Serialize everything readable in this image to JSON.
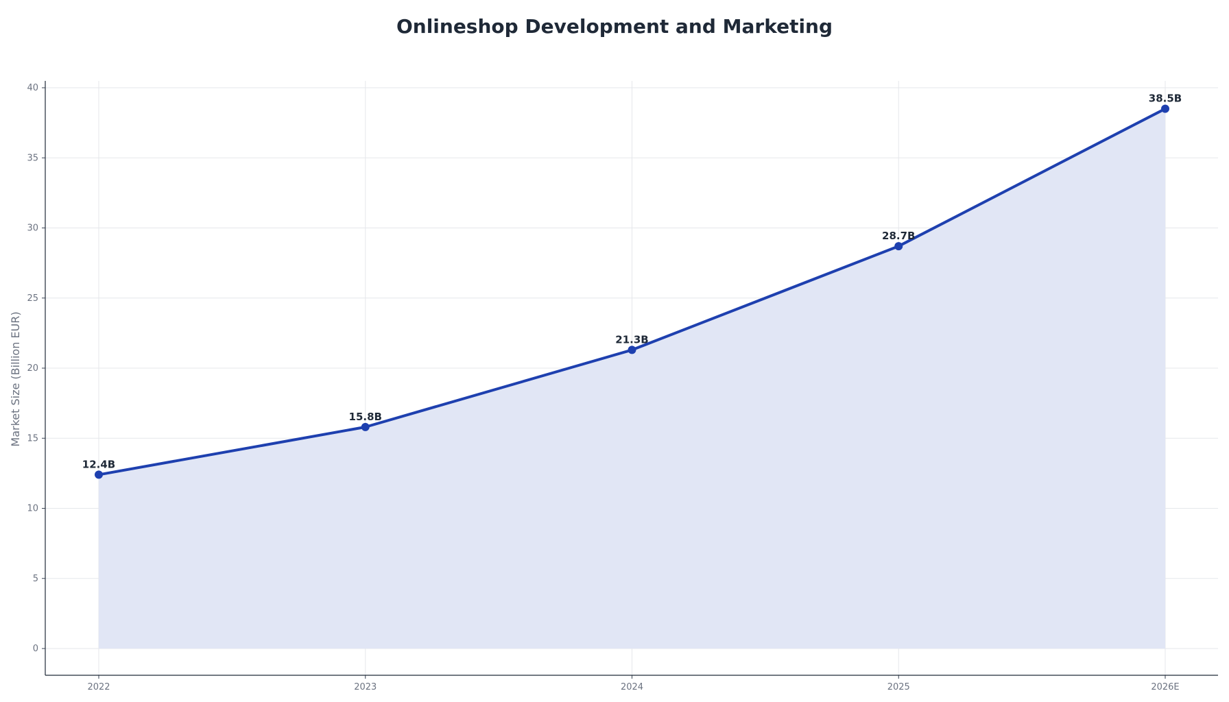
{
  "chart_data": {
    "type": "area",
    "title": "Onlineshop Development and Marketing",
    "xlabel": "",
    "ylabel": "Market Size (Billion EUR)",
    "categories": [
      "2022",
      "2023",
      "2024",
      "2025",
      "2026E"
    ],
    "series": [
      {
        "values": [
          12.4,
          15.8,
          21.3,
          28.7,
          38.5
        ],
        "data_labels": [
          "12.4B",
          "15.8B",
          "21.3B",
          "28.7B",
          "38.5B"
        ],
        "line_color": "#1e40af",
        "fill_color": "#e1e6f5"
      }
    ],
    "ylim": [
      -1.9,
      40.5
    ],
    "yticks": [
      0,
      5,
      10,
      15,
      20,
      25,
      30,
      35,
      40
    ],
    "grid": true,
    "legend": "none"
  }
}
